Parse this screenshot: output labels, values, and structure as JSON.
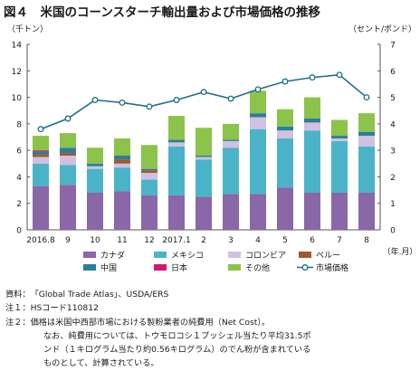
{
  "title": "図４　米国のコーンスターチ輸出量および市場価格の推移",
  "notes": {
    "source_label": "資料：",
    "source_text": "「Global Trade Atlas」、USDA/ERS",
    "note1_label": "注１：",
    "note1_text": "HSコード110812",
    "note2_label": "注２：",
    "note2_text": "価格は米国中西部市場における製粉業者の純費用（Net Cost）。",
    "note2_cont1": "なお、純費用については、トウモロコシ１ブッシェル当たり平均31.5ポ",
    "note2_cont2": "ンド（１キログラム当たり約0.56キログラム）のでん粉が含まれている",
    "note2_cont3": "ものとして、計算されている。"
  },
  "chart_data": {
    "type": "bar",
    "stacked": true,
    "left_unit": "（千トン）",
    "right_unit": "（セント/ポンド）",
    "x_unit": "（年.月）",
    "categories": [
      "2016.8",
      "9",
      "10",
      "11",
      "12",
      "2017.1",
      "2",
      "3",
      "4",
      "5",
      "6",
      "7",
      "8"
    ],
    "y_left": {
      "min": 0,
      "max": 14,
      "ticks": [
        "0",
        "2",
        "4",
        "6",
        "8",
        "10",
        "12",
        "14"
      ]
    },
    "y_right": {
      "min": 0,
      "max": 7,
      "ticks": [
        "0",
        "1",
        "2",
        "3",
        "4",
        "5",
        "6",
        "7"
      ]
    },
    "series": [
      {
        "name": "カナダ",
        "color": "#8a67a7",
        "values": [
          3.3,
          3.4,
          2.8,
          2.9,
          2.6,
          2.6,
          2.5,
          2.7,
          2.7,
          3.2,
          2.8,
          2.8,
          2.8
        ]
      },
      {
        "name": "メキシコ",
        "color": "#4bb3c8",
        "values": [
          1.7,
          1.5,
          1.8,
          1.8,
          1.2,
          3.7,
          2.8,
          3.5,
          4.9,
          3.7,
          4.7,
          3.9,
          3.5
        ]
      },
      {
        "name": "コロンビア",
        "color": "#cfc1df",
        "values": [
          0.5,
          0.7,
          0.2,
          0.3,
          0.5,
          0.3,
          0.2,
          0.5,
          0.9,
          0.6,
          0.6,
          0.2,
          0.8
        ]
      },
      {
        "name": "ペルー",
        "color": "#a05a2e",
        "values": [
          0.2,
          0.2,
          0.0,
          0.3,
          0.2,
          0.0,
          0.0,
          0.0,
          0.0,
          0.0,
          0.0,
          0.0,
          0.0
        ]
      },
      {
        "name": "中国",
        "color": "#2a7f9b",
        "values": [
          0.2,
          0.4,
          0.2,
          0.3,
          0.1,
          0.2,
          0.1,
          0.1,
          0.3,
          0.3,
          0.3,
          0.2,
          0.3
        ]
      },
      {
        "name": "日本",
        "color": "#d0186f",
        "values": [
          0.1,
          0.0,
          0.0,
          0.0,
          0.0,
          0.0,
          0.0,
          0.0,
          0.0,
          0.0,
          0.0,
          0.0,
          0.0
        ]
      },
      {
        "name": "その他",
        "color": "#8cc34a",
        "values": [
          1.1,
          1.1,
          1.2,
          1.3,
          1.8,
          1.8,
          2.1,
          1.2,
          1.7,
          1.3,
          1.6,
          1.2,
          1.4
        ]
      }
    ],
    "line": {
      "name": "市場価格",
      "color": "#1f6f8b",
      "axis": "right",
      "values": [
        3.8,
        4.2,
        4.9,
        4.8,
        4.65,
        4.9,
        5.2,
        4.95,
        5.3,
        5.6,
        5.75,
        5.85,
        5.0
      ]
    },
    "legend_placement": "bottom",
    "legend_order": [
      "カナダ",
      "メキシコ",
      "コロンビア",
      "ペルー",
      "中国",
      "日本",
      "その他",
      "市場価格"
    ],
    "grid": false
  }
}
